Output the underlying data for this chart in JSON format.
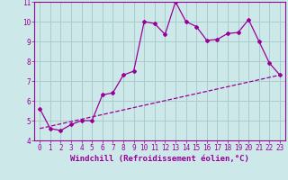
{
  "xlabel": "Windchill (Refroidissement éolien,°C)",
  "line1_x": [
    0,
    1,
    2,
    3,
    4,
    5,
    6,
    7,
    8,
    9,
    10,
    11,
    12,
    13,
    14,
    15,
    16,
    17,
    18,
    19,
    20,
    21,
    22,
    23
  ],
  "line1_y": [
    5.6,
    4.6,
    4.5,
    4.8,
    5.0,
    5.0,
    6.3,
    6.4,
    7.3,
    7.5,
    10.0,
    9.9,
    9.35,
    11.0,
    10.0,
    9.75,
    9.05,
    9.1,
    9.4,
    9.45,
    10.1,
    9.0,
    7.9,
    7.3
  ],
  "line2_x": [
    0,
    23
  ],
  "line2_y": [
    4.6,
    7.3
  ],
  "color": "#990099",
  "bg_color": "#cce8e8",
  "grid_color": "#aacccc",
  "xlim": [
    -0.5,
    23.5
  ],
  "ylim": [
    4,
    11
  ],
  "yticks": [
    4,
    5,
    6,
    7,
    8,
    9,
    10,
    11
  ],
  "xticks": [
    0,
    1,
    2,
    3,
    4,
    5,
    6,
    7,
    8,
    9,
    10,
    11,
    12,
    13,
    14,
    15,
    16,
    17,
    18,
    19,
    20,
    21,
    22,
    23
  ],
  "tick_fontsize": 5.5,
  "label_fontsize": 6.5
}
